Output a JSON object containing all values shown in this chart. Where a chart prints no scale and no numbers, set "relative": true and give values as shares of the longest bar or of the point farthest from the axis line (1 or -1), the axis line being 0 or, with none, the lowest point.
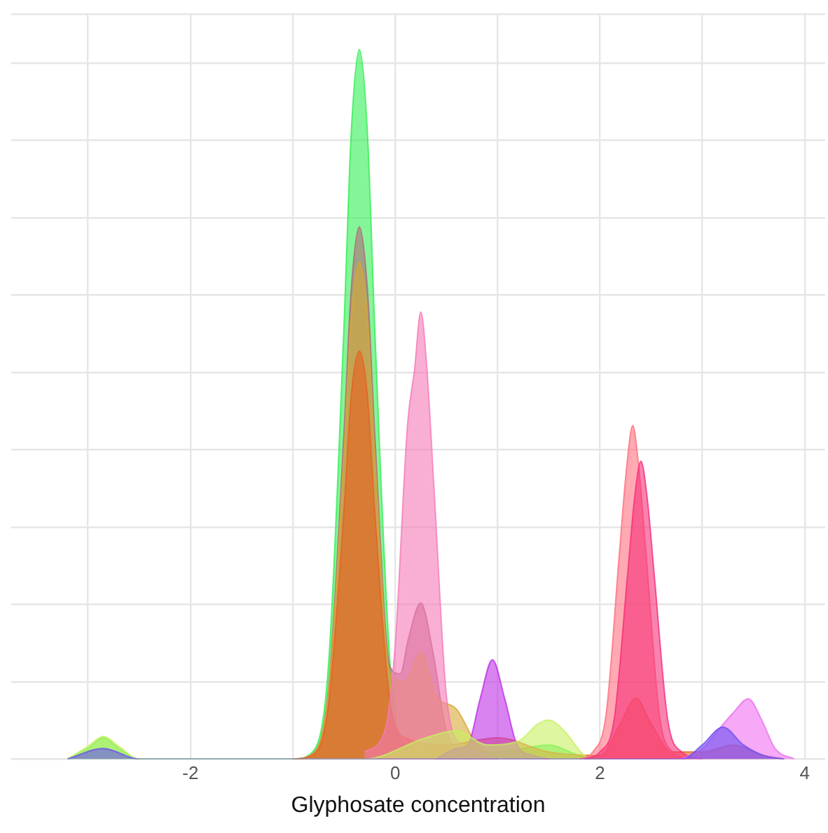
{
  "chart_data": {
    "type": "area",
    "relative": true,
    "xlabel": "Glyphosate concentration",
    "xlim": [
      -3.75,
      4.2
    ],
    "xticks": [
      {
        "value": -3,
        "label": null
      },
      -2,
      {
        "value": -1,
        "label": null
      },
      0,
      {
        "value": 1,
        "label": null
      },
      2,
      {
        "value": 3,
        "label": null
      },
      4
    ],
    "grid": true,
    "legend": false,
    "tick_labels": "x",
    "series": [
      {
        "color": "#33ee55",
        "x": [
          -3.2,
          -3.0,
          -2.85,
          -2.7,
          -2.5,
          -1.0,
          -0.8,
          -0.65,
          -0.5,
          -0.43,
          -0.35,
          -0.27,
          -0.2,
          -0.05,
          0.1,
          0.4,
          1.0,
          1.5,
          1.8,
          2.0
        ],
        "values": [
          0,
          0.015,
          0.03,
          0.015,
          0,
          0,
          0.011,
          0.135,
          0.61,
          0.88,
          1,
          0.88,
          0.61,
          0.135,
          0.02,
          0.01,
          0.01,
          0.02,
          0.005,
          0
        ]
      },
      {
        "color": "#b06878",
        "x": [
          -1.0,
          -0.8,
          -0.65,
          -0.5,
          -0.43,
          -0.35,
          -0.27,
          -0.2,
          -0.05,
          0.05,
          0.13,
          0.25,
          0.37,
          0.5,
          0.7,
          1.0
        ],
        "values": [
          0,
          0.008,
          0.1,
          0.46,
          0.66,
          0.75,
          0.66,
          0.46,
          0.13,
          0.12,
          0.17,
          0.22,
          0.15,
          0.04,
          0.01,
          0
        ]
      },
      {
        "color": "#d8a835",
        "x": [
          -1.0,
          -0.8,
          -0.65,
          -0.5,
          -0.43,
          -0.35,
          -0.27,
          -0.2,
          -0.05,
          0.1,
          0.25,
          0.4,
          0.6,
          0.8,
          1.0
        ],
        "values": [
          0,
          0.008,
          0.095,
          0.43,
          0.62,
          0.7,
          0.62,
          0.43,
          0.12,
          0.11,
          0.15,
          0.09,
          0.07,
          0.02,
          0
        ]
      },
      {
        "color": "#e86020",
        "x": [
          -1.0,
          -0.8,
          -0.65,
          -0.5,
          -0.43,
          -0.35,
          -0.27,
          -0.2,
          -0.05,
          0.1,
          0.5,
          1.0,
          1.5,
          2.0,
          2.2,
          2.35,
          2.5,
          2.7,
          3.0,
          3.3,
          3.6,
          3.8
        ],
        "values": [
          0,
          0.006,
          0.078,
          0.35,
          0.51,
          0.575,
          0.51,
          0.35,
          0.08,
          0.03,
          0.02,
          0.03,
          0.01,
          0.005,
          0.05,
          0.086,
          0.05,
          0.01,
          0.01,
          0.02,
          0.005,
          0
        ]
      },
      {
        "color": "#f57ab8",
        "x": [
          -0.3,
          -0.1,
          0.0,
          0.12,
          0.19,
          0.25,
          0.31,
          0.38,
          0.5,
          0.65,
          0.8,
          1.0
        ],
        "values": [
          0.01,
          0.04,
          0.16,
          0.47,
          0.55,
          0.63,
          0.55,
          0.38,
          0.09,
          0.02,
          0.01,
          0
        ]
      },
      {
        "color": "#c030e8",
        "x": [
          0.4,
          0.6,
          0.71,
          0.83,
          0.95,
          1.07,
          1.19,
          1.35,
          1.5
        ],
        "values": [
          0,
          0.015,
          0.02,
          0.085,
          0.14,
          0.085,
          0.02,
          0.005,
          0
        ]
      },
      {
        "color": "#c8f060",
        "x": [
          -3.2,
          -3.0,
          -2.85,
          -2.7,
          -2.5,
          -0.3,
          0.3,
          0.6,
          0.9,
          1.2,
          1.4,
          1.5,
          1.65,
          1.85,
          2.0
        ],
        "values": [
          0,
          0.018,
          0.032,
          0.018,
          0,
          0,
          0.03,
          0.04,
          0.02,
          0.025,
          0.05,
          0.055,
          0.04,
          0.005,
          0
        ]
      },
      {
        "color": "#ff6f7f",
        "x": [
          1.8,
          1.93,
          2.06,
          2.19,
          2.26,
          2.32,
          2.38,
          2.45,
          2.58,
          2.71,
          2.9
        ],
        "values": [
          0,
          0.01,
          0.063,
          0.29,
          0.41,
          0.47,
          0.41,
          0.29,
          0.063,
          0.01,
          0
        ]
      },
      {
        "color": "#f5307a",
        "x": [
          1.85,
          2.0,
          2.14,
          2.27,
          2.34,
          2.4,
          2.46,
          2.53,
          2.66,
          2.8,
          3.0
        ],
        "values": [
          0,
          0.01,
          0.057,
          0.26,
          0.37,
          0.42,
          0.37,
          0.26,
          0.057,
          0.01,
          0
        ]
      },
      {
        "color": "#ee70f0",
        "x": [
          2.8,
          3.0,
          3.15,
          3.3,
          3.45,
          3.58,
          3.71,
          3.9
        ],
        "values": [
          0,
          0.015,
          0.04,
          0.065,
          0.085,
          0.055,
          0.015,
          0
        ]
      },
      {
        "color": "#6a50f0",
        "x": [
          -3.2,
          -2.85,
          -2.5,
          2.8,
          3.0,
          3.2,
          3.4,
          3.6,
          3.8
        ],
        "values": [
          0,
          0.015,
          0,
          0,
          0.02,
          0.045,
          0.02,
          0.005,
          0
        ]
      }
    ]
  }
}
